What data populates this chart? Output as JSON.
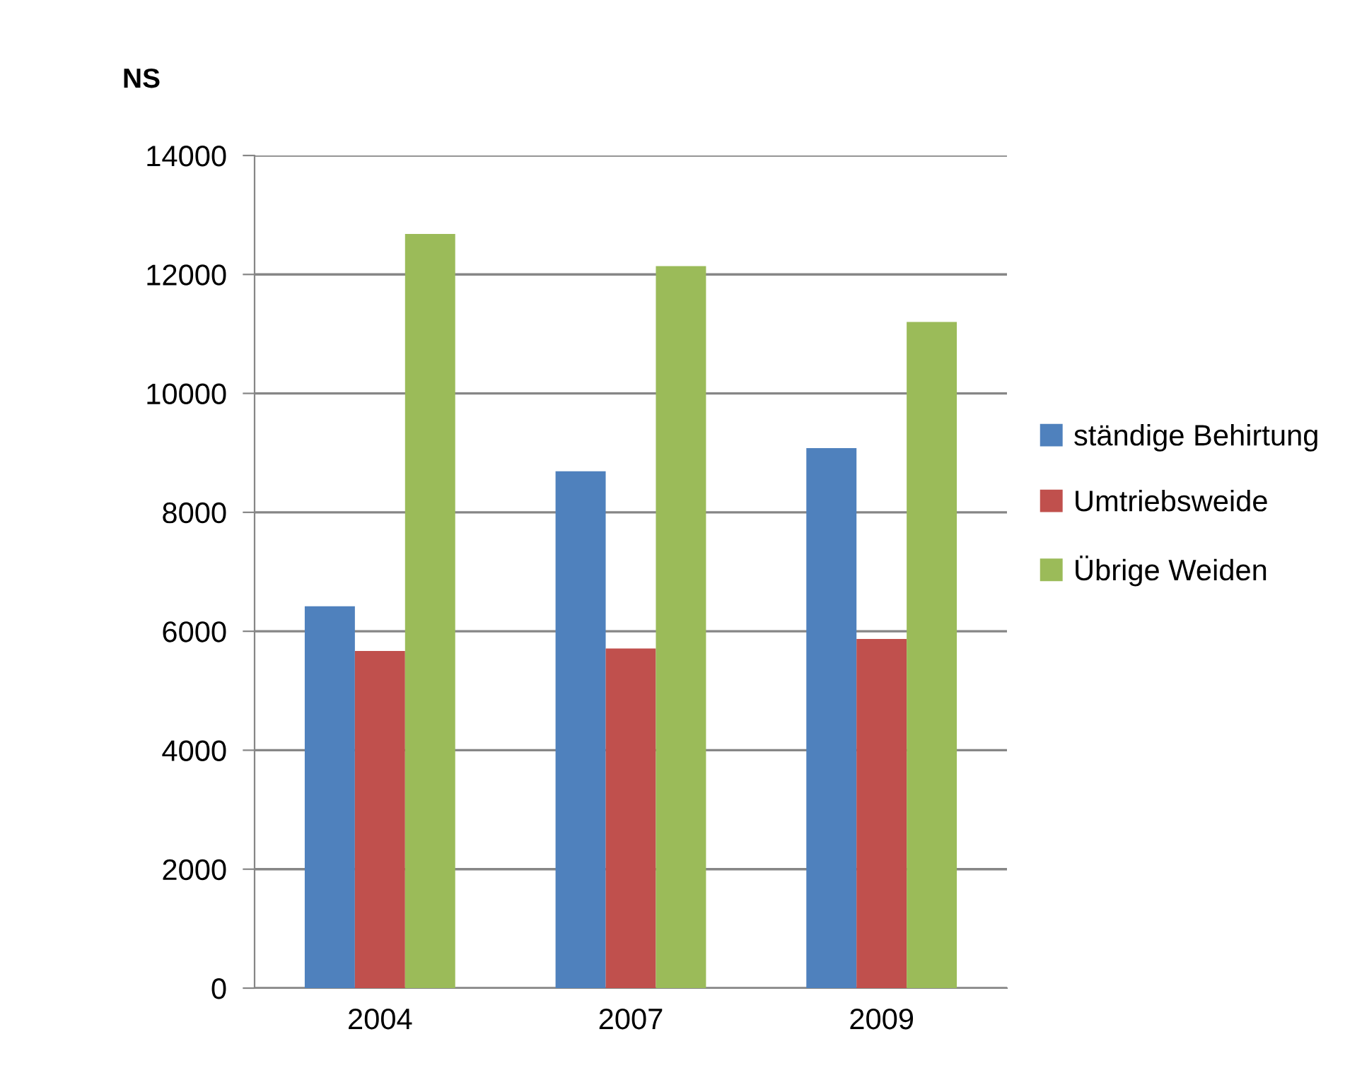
{
  "chart_data": {
    "type": "bar",
    "ylabel": "NS",
    "categories": [
      "2004",
      "2007",
      "2009"
    ],
    "series": [
      {
        "name": "ständige Behirtung",
        "color": "#4f81bd",
        "values": [
          6420,
          8690,
          9080
        ]
      },
      {
        "name": "Umtriebsweide",
        "color": "#c0504d",
        "values": [
          5670,
          5710,
          5870
        ]
      },
      {
        "name": "Übrige Weiden",
        "color": "#9bbb59",
        "values": [
          12680,
          12140,
          11200
        ]
      }
    ],
    "ylim": [
      0,
      14000
    ],
    "yticks": [
      0,
      2000,
      4000,
      6000,
      8000,
      10000,
      12000,
      14000
    ],
    "grid": "y",
    "legend": "right"
  }
}
